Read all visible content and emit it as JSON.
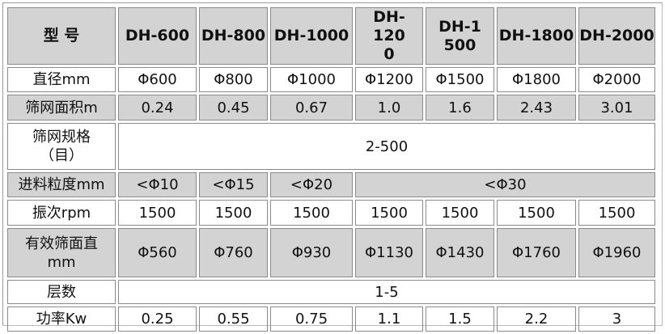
{
  "header": {
    "label": "型 号",
    "models": [
      "DH-600",
      "DH-800",
      "DH-1000",
      "DH-1200",
      "DH-1500",
      "DH-1800",
      "DH-2000"
    ]
  },
  "rows": [
    {
      "label": "直径mm",
      "values": [
        "Φ600",
        "Φ800",
        "Φ1000",
        "Φ1200",
        "Φ1500",
        "Φ1800",
        "Φ2000"
      ]
    },
    {
      "label": "筛网面积m",
      "values": [
        "0.24",
        "0.45",
        "0.67",
        "1.0",
        "1.6",
        "2.43",
        "3.01"
      ]
    },
    {
      "label": "筛网规格（目）",
      "value": "2-500"
    },
    {
      "label": "进料粒度mm",
      "values": [
        "<Φ10",
        "<Φ15",
        "<Φ20",
        "<Φ30"
      ]
    },
    {
      "label": "振次rpm",
      "values": [
        "1500",
        "1500",
        "1500",
        "1500",
        "1500",
        "1500",
        "1500"
      ]
    },
    {
      "label": "有效筛面直mm",
      "values": [
        "Φ560",
        "Φ760",
        "Φ930",
        "Φ1130",
        "Φ1430",
        "Φ1760",
        "Φ1960"
      ]
    },
    {
      "label": "层数",
      "value": "1-5"
    },
    {
      "label": "功率Kw",
      "values": [
        "0.25",
        "0.55",
        "0.75",
        "1.1",
        "1.5",
        "2.2",
        "3"
      ]
    }
  ],
  "colors": {
    "shaded_row": "#d3d3d3",
    "border": "#8a8a8a"
  }
}
